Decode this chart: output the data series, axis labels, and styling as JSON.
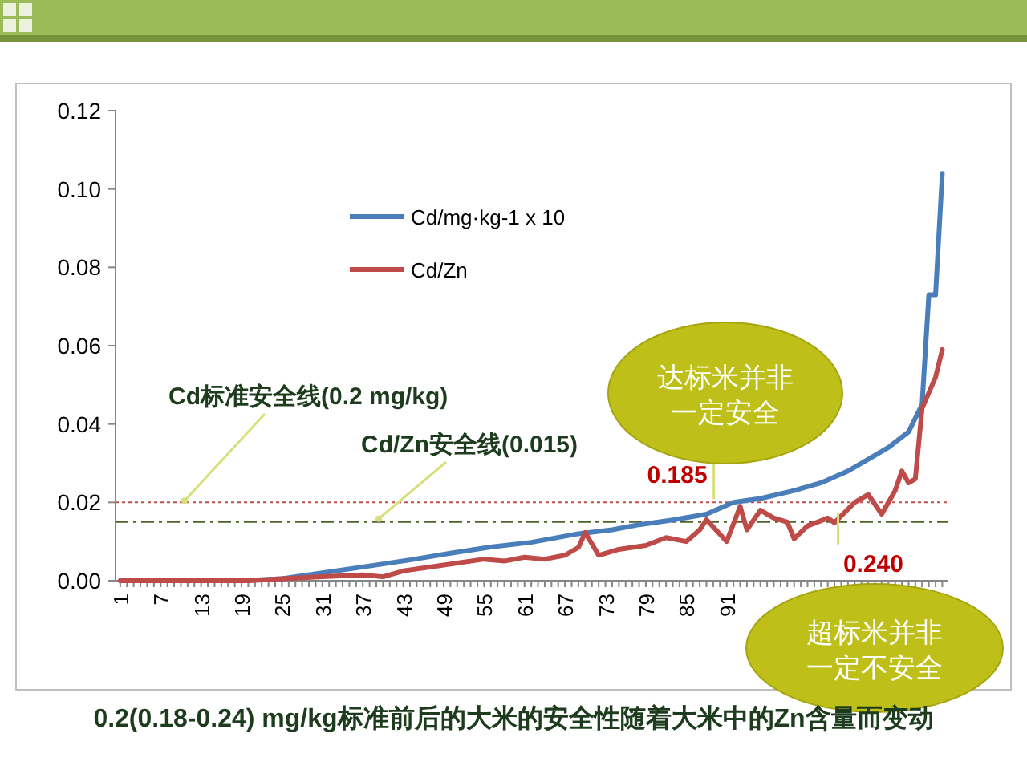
{
  "chart_data": {
    "type": "line",
    "title": "0.2(0.18-0.24) mg/kg标准前后的大米的安全性随着大米中的Zn含量而变动",
    "xlim": [
      0.3,
      123.9
    ],
    "xticks": [
      1,
      7,
      13,
      19,
      25,
      31,
      37,
      43,
      49,
      55,
      61,
      67,
      73,
      79,
      85,
      91
    ],
    "ylim": [
      0,
      0.12
    ],
    "yticks": [
      {
        "value": 0,
        "label": "0.00"
      },
      {
        "value": 0.02,
        "label": "0.02"
      },
      {
        "value": 0.04,
        "label": "0.04"
      },
      {
        "value": 0.06,
        "label": "0.06"
      },
      {
        "value": 0.08,
        "label": "0.08"
      },
      {
        "value": 0.1,
        "label": "0.10"
      },
      {
        "value": 0.12,
        "label": "0.12"
      }
    ],
    "legend": "top left",
    "grid": false,
    "line_style": "solid",
    "series": [
      {
        "name": "Cd/mg·kg-1 x 10",
        "color": "#4a7ebb",
        "x": [
          1,
          19,
          25,
          31,
          37,
          44,
          50,
          56,
          62,
          69,
          74,
          78,
          83,
          88,
          92,
          96,
          101,
          105,
          109,
          112,
          115,
          118,
          120,
          121,
          122,
          123
        ],
        "values": [
          0,
          0,
          0.0005,
          0.002,
          0.0035,
          0.0053,
          0.007,
          0.0086,
          0.0098,
          0.012,
          0.013,
          0.0143,
          0.0155,
          0.017,
          0.02,
          0.021,
          0.023,
          0.025,
          0.028,
          0.031,
          0.034,
          0.038,
          0.045,
          0.073,
          0.073,
          0.104
        ]
      },
      {
        "name": "Cd/Zn",
        "color": "#be4b48",
        "x": [
          1,
          20,
          25,
          31,
          37,
          40,
          43,
          49,
          55,
          58,
          61,
          64,
          67,
          69,
          70,
          72,
          75,
          79,
          82,
          85,
          87,
          88,
          91,
          93,
          94,
          96,
          98,
          100,
          101,
          103,
          106,
          107,
          110,
          112,
          114,
          116,
          117,
          118,
          119,
          120,
          121,
          122,
          123
        ],
        "values": [
          0,
          0,
          0.0005,
          0.001,
          0.0015,
          0.001,
          0.0025,
          0.004,
          0.0055,
          0.005,
          0.006,
          0.0055,
          0.0065,
          0.0085,
          0.0123,
          0.0065,
          0.008,
          0.009,
          0.011,
          0.01,
          0.013,
          0.0156,
          0.01,
          0.019,
          0.013,
          0.018,
          0.016,
          0.015,
          0.0107,
          0.014,
          0.016,
          0.0148,
          0.02,
          0.022,
          0.017,
          0.023,
          0.028,
          0.025,
          0.026,
          0.044,
          0.048,
          0.052,
          0.059
        ]
      }
    ],
    "ref_lines": [
      {
        "axis": "y",
        "value": 0.02,
        "label": "Cd标准安全线(0.2 mg/kg)",
        "color": "#c0504d",
        "line_style": "dotted"
      },
      {
        "axis": "y",
        "value": 0.015,
        "label": "Cd/Zn安全线(0.015)",
        "color": "#4f6228",
        "line_style": "dashed"
      }
    ],
    "annotations": [
      {
        "text": "0.185",
        "x": 91,
        "y": 0.02
      },
      {
        "text": "0.240",
        "x": 108,
        "y": 0.015
      },
      "达标米并非一定安全",
      "超标米并非一定不安全"
    ]
  }
}
